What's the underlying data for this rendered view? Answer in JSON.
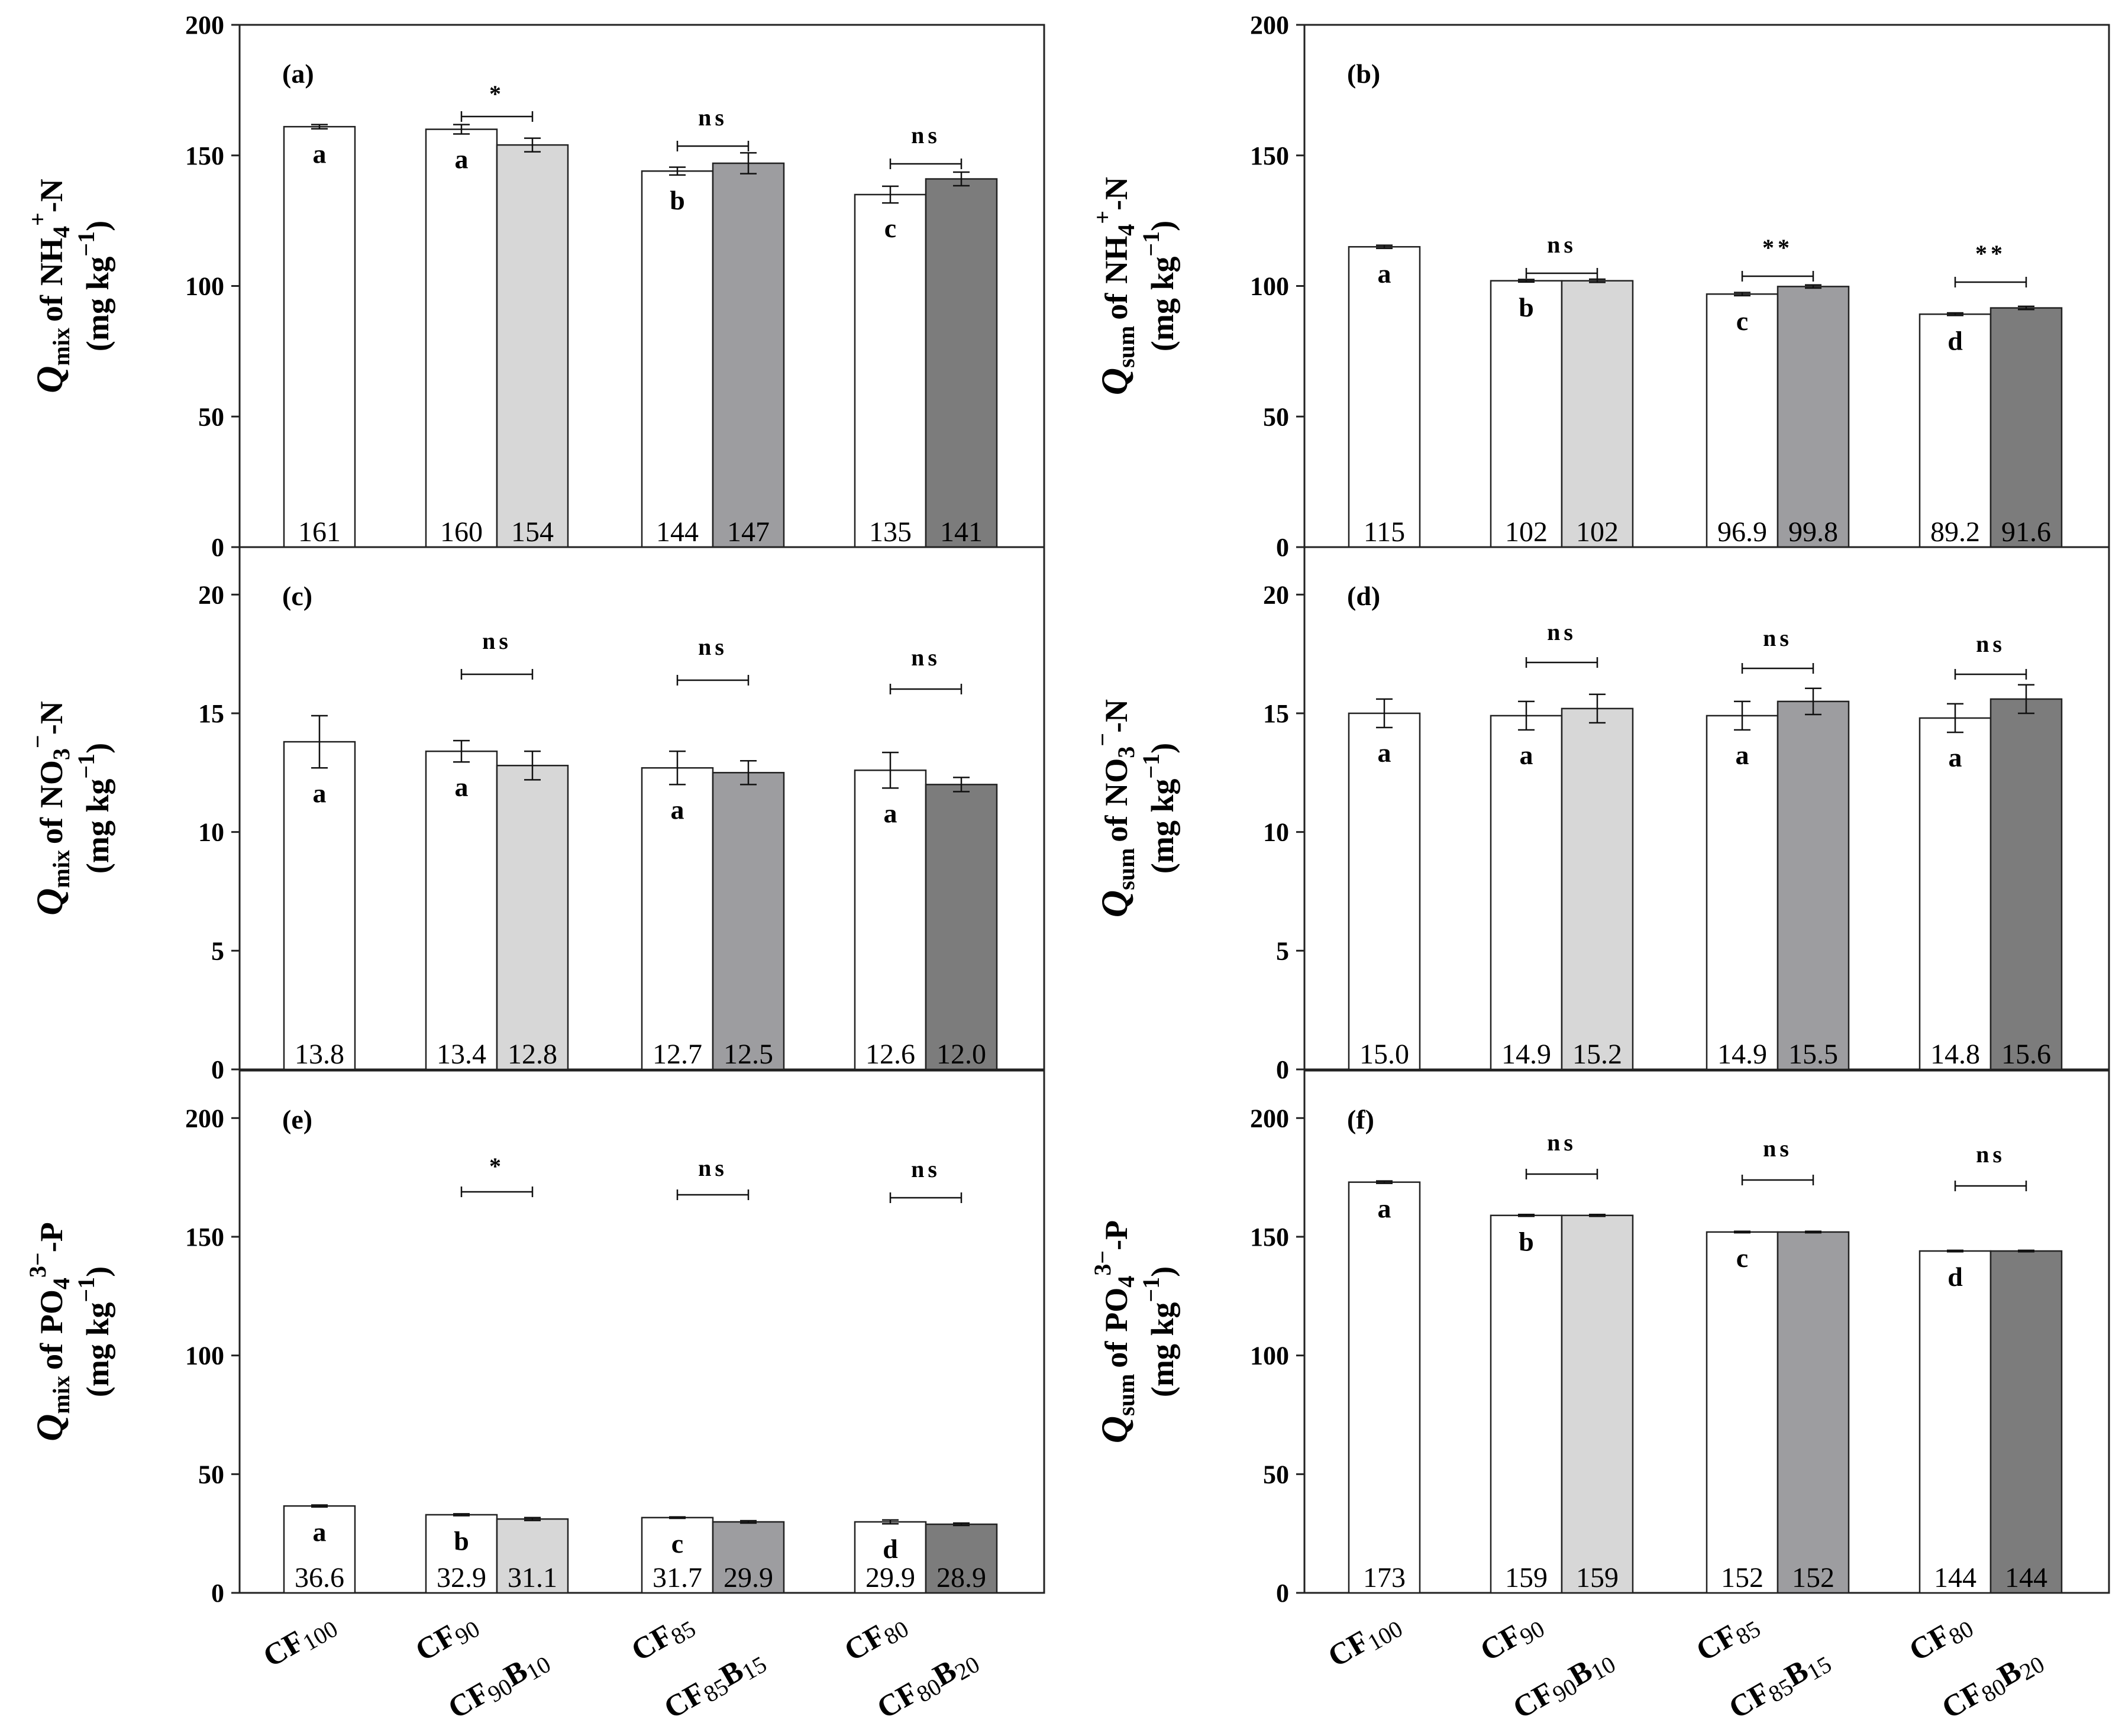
{
  "chart_data": [
    {
      "panel": "(a)",
      "type": "bar",
      "ylim": [
        0,
        200
      ],
      "yticks": [
        0,
        50,
        100,
        150,
        200
      ],
      "ylabel": {
        "q": "Q",
        "sub": "mix",
        "of": "of",
        "species": "NH",
        "species_sub": "4",
        "species_sup": "+",
        "suffix": "-N",
        "units": "(mg kg",
        "units_sup": "−1",
        "units_close": ")"
      },
      "values": [
        161,
        160,
        154,
        144,
        147,
        135,
        141
      ],
      "value_labels": [
        "161",
        "160",
        "154",
        "144",
        "147",
        "135",
        "141"
      ],
      "errors": [
        0.8,
        1.8,
        2.6,
        1.5,
        4.0,
        3.2,
        2.6
      ],
      "letters": [
        "a",
        "a",
        "b",
        "c"
      ],
      "significance": [
        "*",
        "ns",
        "ns"
      ]
    },
    {
      "panel": "(b)",
      "type": "bar",
      "ylim": [
        0,
        200
      ],
      "yticks": [
        0,
        50,
        100,
        150,
        200
      ],
      "ylabel": {
        "q": "Q",
        "sub": "sum",
        "of": "of",
        "species": "NH",
        "species_sub": "4",
        "species_sup": "+",
        "suffix": "-N",
        "units": "(mg kg",
        "units_sup": "−1",
        "units_close": ")"
      },
      "values": [
        115,
        102,
        102,
        96.9,
        99.8,
        89.2,
        91.6
      ],
      "value_labels": [
        "115",
        "102",
        "102",
        "96.9",
        "99.8",
        "89.2",
        "91.6"
      ],
      "errors": [
        0.6,
        0.5,
        0.6,
        0.6,
        0.6,
        0.5,
        0.6
      ],
      "letters": [
        "a",
        "b",
        "c",
        "d"
      ],
      "significance": [
        "ns",
        "**",
        "**"
      ]
    },
    {
      "panel": "(c)",
      "type": "bar",
      "ylim": [
        0,
        22
      ],
      "yticks": [
        0,
        5,
        10,
        15,
        20
      ],
      "ylabel": {
        "q": "Q",
        "sub": "mix",
        "of": "of",
        "species": "NO",
        "species_sub": "3",
        "species_sup": "−",
        "suffix": "-N",
        "units": "(mg kg",
        "units_sup": "−1",
        "units_close": ")"
      },
      "values": [
        13.8,
        13.4,
        12.8,
        12.7,
        12.5,
        12.6,
        12.0
      ],
      "value_labels": [
        "13.8",
        "13.4",
        "12.8",
        "12.7",
        "12.5",
        "12.6",
        "12.0"
      ],
      "errors": [
        1.1,
        0.45,
        0.6,
        0.7,
        0.5,
        0.75,
        0.3
      ],
      "letters": [
        "a",
        "a",
        "a",
        "a"
      ],
      "significance": [
        "ns",
        "ns",
        "ns"
      ]
    },
    {
      "panel": "(d)",
      "type": "bar",
      "ylim": [
        0,
        22
      ],
      "yticks": [
        0,
        5,
        10,
        15,
        20
      ],
      "ylabel": {
        "q": "Q",
        "sub": "sum",
        "of": "of",
        "species": "NO",
        "species_sub": "3",
        "species_sup": "−",
        "suffix": "-N",
        "units": "(mg kg",
        "units_sup": "−1",
        "units_close": ")"
      },
      "values": [
        15.0,
        14.9,
        15.2,
        14.9,
        15.5,
        14.8,
        15.6
      ],
      "value_labels": [
        "15.0",
        "14.9",
        "15.2",
        "14.9",
        "15.5",
        "14.8",
        "15.6"
      ],
      "errors": [
        0.6,
        0.6,
        0.6,
        0.6,
        0.55,
        0.6,
        0.6
      ],
      "letters": [
        "a",
        "a",
        "a",
        "a"
      ],
      "significance": [
        "ns",
        "ns",
        "ns"
      ]
    },
    {
      "panel": "(e)",
      "type": "bar",
      "ylim": [
        0,
        220
      ],
      "yticks": [
        0,
        50,
        100,
        150,
        200
      ],
      "ylabel": {
        "q": "Q",
        "sub": "mix",
        "of": "of",
        "species": "PO",
        "species_sub": "4",
        "species_sup": "3−",
        "suffix": "-P",
        "units": "(mg kg",
        "units_sup": "−1",
        "units_close": ")"
      },
      "values": [
        36.6,
        32.9,
        31.1,
        31.7,
        29.9,
        29.9,
        28.9
      ],
      "value_labels": [
        "36.6",
        "32.9",
        "31.1",
        "31.7",
        "29.9",
        "29.9",
        "28.9"
      ],
      "errors": [
        0.4,
        0.4,
        0.6,
        0.3,
        0.5,
        0.8,
        0.5
      ],
      "letters": [
        "a",
        "b",
        "c",
        "d"
      ],
      "significance": [
        "*",
        "ns",
        "ns"
      ]
    },
    {
      "panel": "(f)",
      "type": "bar",
      "ylim": [
        0,
        220
      ],
      "yticks": [
        0,
        50,
        100,
        150,
        200
      ],
      "ylabel": {
        "q": "Q",
        "sub": "sum",
        "of": "of",
        "species": "PO",
        "species_sub": "4",
        "species_sup": "3−",
        "suffix": "-P",
        "units": "(mg kg",
        "units_sup": "−1",
        "units_close": ")"
      },
      "values": [
        173,
        159,
        159,
        152,
        152,
        144,
        144
      ],
      "value_labels": [
        "173",
        "159",
        "159",
        "152",
        "152",
        "144",
        "144"
      ],
      "errors": [
        0.5,
        0.4,
        0.4,
        0.3,
        0.3,
        0.3,
        0.3
      ],
      "letters": [
        "a",
        "b",
        "c",
        "d"
      ],
      "significance": [
        "ns",
        "ns",
        "ns"
      ]
    }
  ],
  "categories": [
    {
      "main": "CF",
      "sub": "100"
    },
    {
      "main": "CF",
      "sub": "90"
    },
    {
      "main": "CF",
      "sub": "90",
      "main2": "B",
      "sub2": "10"
    },
    {
      "main": "CF",
      "sub": "85"
    },
    {
      "main": "CF",
      "sub": "85",
      "main2": "B",
      "sub2": "15"
    },
    {
      "main": "CF",
      "sub": "80"
    },
    {
      "main": "CF",
      "sub": "80",
      "main2": "B",
      "sub2": "20"
    }
  ],
  "colors": [
    "#ffffff",
    "#ffffff",
    "#d7d7d7",
    "#ffffff",
    "#9d9da0",
    "#ffffff",
    "#7c7c7c"
  ]
}
